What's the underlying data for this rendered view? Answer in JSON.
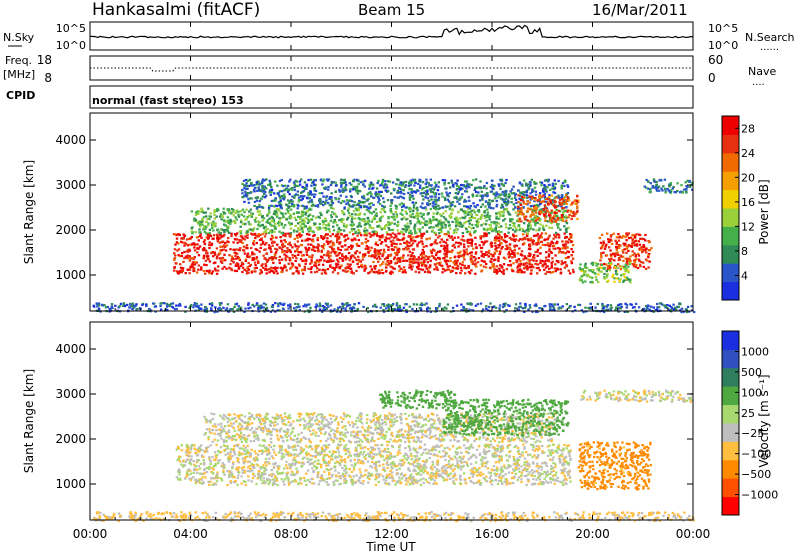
{
  "header": {
    "station": "Hankasalmi (fitACF)",
    "beam": "Beam 15",
    "date": "16/Mar/2011"
  },
  "strips": {
    "nsky": {
      "label": "N.Sky",
      "ticks": [
        "10^5",
        "10^0"
      ],
      "right_label": "N.Search",
      "right_ticks": [
        "10^5",
        "10^0"
      ]
    },
    "freq": {
      "label_line1": "Freq.",
      "label_line2": "[MHz]",
      "ticks": [
        "18",
        "8"
      ],
      "right_label": "Nave",
      "right_ticks": [
        "60",
        "0"
      ]
    },
    "cpid": {
      "label": "CPID",
      "text": "normal (fast stereo) 153"
    }
  },
  "colors": {
    "power": [
      "#1a2fe0",
      "#2a55c8",
      "#2f8a55",
      "#44b04a",
      "#9ad03a",
      "#f0d000",
      "#f5a000",
      "#f06a00",
      "#e83010",
      "#ee0000"
    ],
    "velocity": [
      "#ff0000",
      "#ff5000",
      "#ff8a00",
      "#ffbe40",
      "#bebebe",
      "#a8d870",
      "#4fa840",
      "#2f7f5f",
      "#3050c0",
      "#1a2fe0"
    ]
  },
  "chart_data": [
    {
      "type": "heatmap",
      "name": "power",
      "ylabel": "Slant Range [km]",
      "yticks": [
        "1000",
        "2000",
        "3000",
        "4000"
      ],
      "ylim": [
        200,
        4600
      ],
      "xlim": [
        0,
        24
      ],
      "xticks": [
        "00:00",
        "04:00",
        "08:00",
        "12:00",
        "16:00",
        "20:00",
        "00:00"
      ],
      "colorbar": {
        "label": "Power [dB]",
        "ticks": [
          "4",
          "8",
          "12",
          "16",
          "20",
          "24",
          "28"
        ],
        "range": [
          0,
          30
        ]
      },
      "regions": [
        {
          "t0": 3.3,
          "t1": 19.2,
          "r0": 1050,
          "r1": 1950,
          "level": 27
        },
        {
          "t0": 4.0,
          "t1": 19.0,
          "r0": 1950,
          "r1": 2500,
          "level": 11
        },
        {
          "t0": 6.0,
          "t1": 19.0,
          "r0": 2500,
          "r1": 3150,
          "level": 6
        },
        {
          "t0": 17.0,
          "t1": 19.4,
          "r0": 2200,
          "r1": 2800,
          "level": 24
        },
        {
          "t0": 20.2,
          "t1": 22.3,
          "r0": 1150,
          "r1": 1950,
          "level": 26
        },
        {
          "t0": 19.4,
          "t1": 21.5,
          "r0": 850,
          "r1": 1300,
          "level": 12
        },
        {
          "t0": 22.0,
          "t1": 24.0,
          "r0": 2850,
          "r1": 3150,
          "level": 7
        },
        {
          "t0": 0.1,
          "t1": 24.0,
          "r0": 200,
          "r1": 400,
          "level": 5
        }
      ]
    },
    {
      "type": "heatmap",
      "name": "velocity",
      "ylabel": "Slant Range [km]",
      "yticks": [
        "1000",
        "2000",
        "3000",
        "4000"
      ],
      "ylim": [
        200,
        4600
      ],
      "xlim": [
        0,
        24
      ],
      "xticks": [
        "00:00",
        "04:00",
        "08:00",
        "12:00",
        "16:00",
        "20:00",
        "00:00"
      ],
      "xlabel": "Time UT",
      "colorbar": {
        "label": "Velocity [m s⁻¹]",
        "ticks": [
          "1000",
          "500",
          "100",
          "25",
          "−25",
          "−100",
          "−500",
          "−1000"
        ]
      },
      "regions": [
        {
          "t0": 3.4,
          "t1": 19.1,
          "r0": 1000,
          "r1": 1900,
          "velocity": 0
        },
        {
          "t0": 4.5,
          "t1": 18.5,
          "r0": 1950,
          "r1": 2600,
          "velocity": 0
        },
        {
          "t0": 14.0,
          "t1": 19.0,
          "r0": 2100,
          "r1": 2900,
          "velocity": 300
        },
        {
          "t0": 11.5,
          "t1": 14.5,
          "r0": 2700,
          "r1": 3100,
          "velocity": 200
        },
        {
          "t0": 19.4,
          "t1": 22.3,
          "r0": 900,
          "r1": 1950,
          "velocity": -150
        },
        {
          "t0": 19.5,
          "t1": 24.0,
          "r0": 2850,
          "r1": 3100,
          "velocity": 0
        },
        {
          "t0": 0.1,
          "t1": 24.0,
          "r0": 200,
          "r1": 400,
          "velocity": -40
        }
      ]
    }
  ]
}
